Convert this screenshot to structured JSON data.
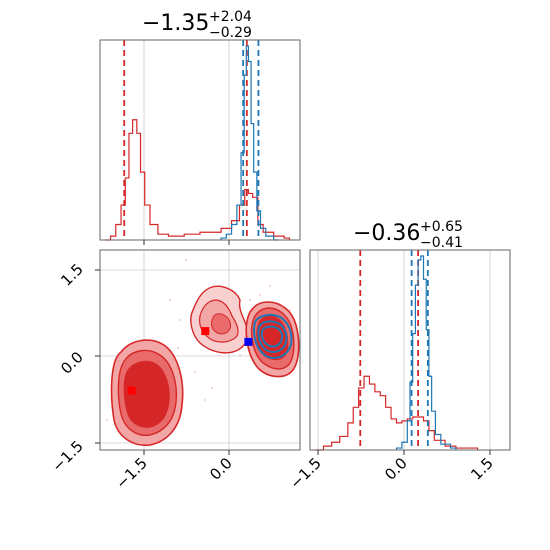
{
  "colors": {
    "red": "#d62728",
    "blue": "#1f77b4",
    "light_red": "#f2a6a6",
    "mid_red": "#e86a6a",
    "marker_blue": "#0000ff",
    "marker_red": "#ff0000"
  },
  "chart_data": [
    {
      "type": "histogram",
      "panel": "top-left (marginal of parameter 1)",
      "title": {
        "value": "−1.35",
        "upper": "+2.04",
        "lower": "−0.29"
      },
      "xlim": [
        -2.1,
        1.7
      ],
      "grid": true,
      "series": [
        {
          "name": "",
          "color": "#d62728",
          "bins": [
            [
              -2.0,
              0.0
            ],
            [
              -1.9,
              0.02
            ],
            [
              -1.8,
              0.08
            ],
            [
              -1.7,
              0.18
            ],
            [
              -1.62,
              0.32
            ],
            [
              -1.55,
              0.55
            ],
            [
              -1.48,
              0.62
            ],
            [
              -1.4,
              0.55
            ],
            [
              -1.33,
              0.35
            ],
            [
              -1.25,
              0.18
            ],
            [
              -1.15,
              0.08
            ],
            [
              -1.0,
              0.03
            ],
            [
              -0.8,
              0.02
            ],
            [
              -0.5,
              0.03
            ],
            [
              -0.2,
              0.04
            ],
            [
              0.0,
              0.04
            ],
            [
              0.2,
              0.06
            ],
            [
              0.4,
              0.1
            ],
            [
              0.55,
              0.18
            ],
            [
              0.65,
              0.26
            ],
            [
              0.72,
              0.24
            ],
            [
              0.8,
              0.22
            ],
            [
              0.9,
              0.08
            ],
            [
              1.0,
              0.04
            ],
            [
              1.2,
              0.02
            ],
            [
              1.4,
              0.01
            ]
          ],
          "quantile_lines": [
            -1.64,
            0.69
          ]
        },
        {
          "name": "",
          "color": "#1f77b4",
          "bins": [
            [
              0.2,
              0.01
            ],
            [
              0.3,
              0.03
            ],
            [
              0.4,
              0.08
            ],
            [
              0.5,
              0.18
            ],
            [
              0.58,
              0.45
            ],
            [
              0.64,
              0.85
            ],
            [
              0.68,
              1.0
            ],
            [
              0.72,
              0.92
            ],
            [
              0.77,
              0.6
            ],
            [
              0.82,
              0.35
            ],
            [
              0.88,
              0.15
            ],
            [
              0.95,
              0.06
            ],
            [
              1.05,
              0.02
            ],
            [
              1.2,
              0.0
            ]
          ],
          "quantile_lines": [
            0.62,
            0.91
          ]
        }
      ]
    },
    {
      "type": "contour",
      "panel": "bottom-left (joint distribution)",
      "xlim": [
        -2.1,
        1.7
      ],
      "ylim": [
        -1.7,
        2.0
      ],
      "x_ticks": [
        "−1.5",
        "0.0"
      ],
      "y_ticks": [
        "−1.5",
        "0.0",
        "1.5"
      ],
      "grid": true,
      "regions": [
        {
          "name": "",
          "color": "#d62728",
          "center": [
            -1.5,
            -0.6
          ]
        },
        {
          "name": "",
          "color": "#d62728",
          "center": [
            -0.1,
            0.5
          ]
        },
        {
          "name": "",
          "color": "#d62728",
          "center": [
            0.7,
            0.3
          ]
        },
        {
          "name": "",
          "color": "#1f77b4",
          "center": [
            0.75,
            0.3
          ]
        }
      ],
      "markers": [
        {
          "x": -1.5,
          "y": -0.6,
          "color": "#ff0000"
        },
        {
          "x": -0.1,
          "y": 0.5,
          "color": "#ff0000"
        },
        {
          "x": 0.72,
          "y": 0.3,
          "color": "#0000ff"
        }
      ]
    },
    {
      "type": "histogram",
      "panel": "bottom-right (marginal of parameter 2)",
      "title": {
        "value": "−0.36",
        "upper": "+0.65",
        "lower": "−0.41"
      },
      "xlim": [
        -1.7,
        2.0
      ],
      "x_ticks": [
        "−1.5",
        "0.0",
        "1.5"
      ],
      "grid": true,
      "series": [
        {
          "name": "",
          "color": "#d62728",
          "bins": [
            [
              -1.6,
              0.0
            ],
            [
              -1.45,
              0.02
            ],
            [
              -1.3,
              0.04
            ],
            [
              -1.15,
              0.07
            ],
            [
              -1.0,
              0.14
            ],
            [
              -0.9,
              0.22
            ],
            [
              -0.8,
              0.32
            ],
            [
              -0.7,
              0.38
            ],
            [
              -0.6,
              0.34
            ],
            [
              -0.5,
              0.3
            ],
            [
              -0.4,
              0.28
            ],
            [
              -0.3,
              0.22
            ],
            [
              -0.2,
              0.16
            ],
            [
              -0.1,
              0.14
            ],
            [
              0.0,
              0.15
            ],
            [
              0.1,
              0.16
            ],
            [
              0.2,
              0.17
            ],
            [
              0.3,
              0.17
            ],
            [
              0.4,
              0.15
            ],
            [
              0.5,
              0.1
            ],
            [
              0.6,
              0.05
            ],
            [
              0.8,
              0.02
            ],
            [
              1.0,
              0.01
            ],
            [
              1.3,
              0.01
            ]
          ],
          "quantile_lines": [
            -0.77,
            0.3
          ]
        },
        {
          "name": "",
          "color": "#1f77b4",
          "bins": [
            [
              -0.1,
              0.01
            ],
            [
              0.0,
              0.04
            ],
            [
              0.1,
              0.15
            ],
            [
              0.15,
              0.35
            ],
            [
              0.2,
              0.6
            ],
            [
              0.25,
              0.85
            ],
            [
              0.3,
              0.98
            ],
            [
              0.35,
              1.0
            ],
            [
              0.4,
              0.88
            ],
            [
              0.45,
              0.62
            ],
            [
              0.5,
              0.38
            ],
            [
              0.55,
              0.2
            ],
            [
              0.62,
              0.08
            ],
            [
              0.72,
              0.03
            ],
            [
              0.9,
              0.01
            ]
          ],
          "quantile_lines": [
            0.18,
            0.48
          ]
        }
      ]
    }
  ]
}
